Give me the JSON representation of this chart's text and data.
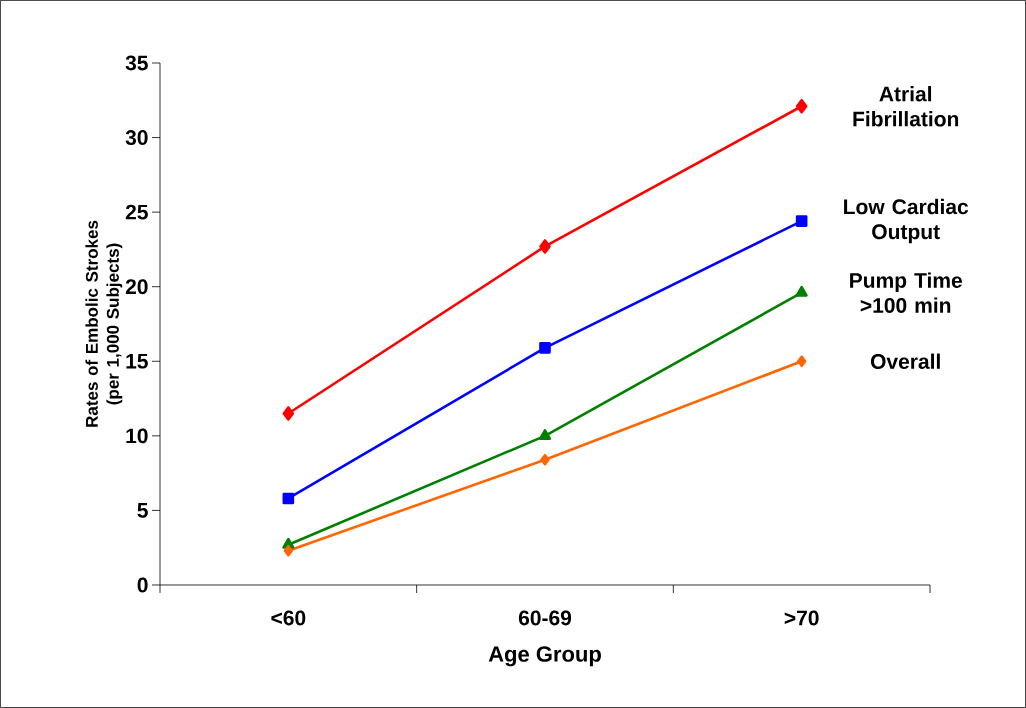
{
  "chart_data": {
    "type": "line",
    "xlabel": "Age Group",
    "ylabel": "Rates of Embolic Strokes (per 1,000 Subjects)",
    "categories": [
      "<60",
      "60-69",
      ">70"
    ],
    "series": [
      {
        "name": "Atrial Fibrillation",
        "color": "#ff0000",
        "marker": "diamond",
        "values": [
          11.5,
          22.7,
          32.1
        ]
      },
      {
        "name": "Low Cardiac Output",
        "color": "#0000ff",
        "marker": "square",
        "values": [
          5.8,
          15.9,
          24.4
        ]
      },
      {
        "name": "Pump Time >100 min",
        "color": "#008000",
        "marker": "triangle",
        "values": [
          2.7,
          10.0,
          19.6
        ]
      },
      {
        "name": "Overall",
        "color": "#ff6600",
        "marker": "diamond",
        "values": [
          2.3,
          8.4,
          15.0
        ]
      }
    ],
    "ylim": [
      0,
      35
    ],
    "yticks": [
      0,
      5,
      10,
      15,
      20,
      25,
      30,
      35
    ]
  }
}
